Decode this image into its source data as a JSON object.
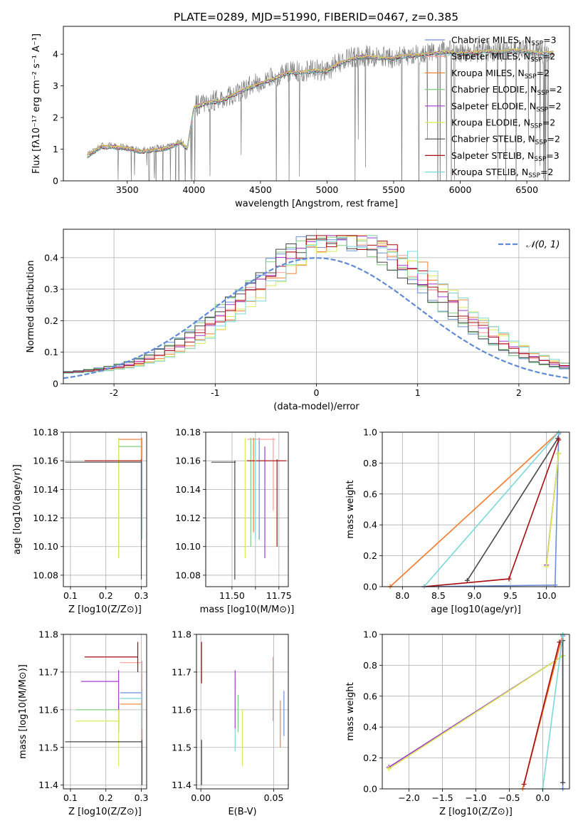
{
  "figure_title": "PLATE=0289, MJD=51990, FIBERID=0467, z=0.385",
  "colors": {
    "Chabrier MILES": "#6a8fdc",
    "Salpeter MILES": "#ff9a9a",
    "Kroupa MILES": "#f08232",
    "Chabrier ELODIE": "#7fcf7f",
    "Salpeter ELODIE": "#a43ad0",
    "Kroupa ELODIE": "#dcea55",
    "Chabrier STELIB": "#484848",
    "Salpeter STELIB": "#a80c10",
    "Kroupa STELIB": "#7ad8dc",
    "data": "#7f7f7f",
    "normal_curve": "#5f8ad8",
    "grid": "#b0b0b0"
  },
  "chart_data": [
    {
      "id": "spectrum",
      "type": "line",
      "title": "PLATE=0289, MJD=51990, FIBERID=0467, z=0.385",
      "xlabel": "wavelength [Angstrom, rest frame]",
      "ylabel": "Flux [f_λ 10^-17 erg cm^-2 s^-1 A^-1]",
      "xlim": [
        3020,
        6820
      ],
      "ylim": [
        0,
        4.88
      ],
      "xticks": [
        3500,
        4000,
        4500,
        5000,
        5500,
        6000,
        6500
      ],
      "yticks": [
        0,
        1,
        2,
        3,
        4
      ],
      "grid": false,
      "legend_position": "top-right",
      "legend": [
        {
          "model": "Chabrier MILES",
          "nssp": "3"
        },
        {
          "model": "Salpeter MILES",
          "nssp": "2"
        },
        {
          "model": "Kroupa MILES",
          "nssp": "2"
        },
        {
          "model": "Chabrier ELODIE",
          "nssp": "2"
        },
        {
          "model": "Salpeter ELODIE",
          "nssp": "2"
        },
        {
          "model": "Kroupa ELODIE",
          "nssp": "2"
        },
        {
          "model": "Chabrier STELIB",
          "nssp": "2"
        },
        {
          "model": "Salpeter STELIB",
          "nssp": "3"
        },
        {
          "model": "Kroupa STELIB",
          "nssp": "2"
        }
      ],
      "data_range": [
        3200,
        6700
      ],
      "continuum_x": [
        3200,
        3300,
        3400,
        3500,
        3600,
        3700,
        3800,
        3900,
        3950,
        4000,
        4100,
        4200,
        4300,
        4400,
        4500,
        4600,
        4700,
        4800,
        4900,
        5000,
        5100,
        5200,
        5300,
        5400,
        5500,
        5600,
        5700,
        5800,
        5900,
        6000,
        6100,
        6200,
        6300,
        6400,
        6500,
        6600,
        6700
      ],
      "continuum_y": [
        0.8,
        1.1,
        1.1,
        1.05,
        0.95,
        1.0,
        1.05,
        1.25,
        1.05,
        2.35,
        2.5,
        2.55,
        2.75,
        2.95,
        3.1,
        3.25,
        3.45,
        3.45,
        3.5,
        3.5,
        3.75,
        3.9,
        3.95,
        3.9,
        3.9,
        3.98,
        4.0,
        4.05,
        4.1,
        4.05,
        4.08,
        4.12,
        4.1,
        4.15,
        4.12,
        4.05,
        4.08
      ]
    },
    {
      "id": "residuals",
      "type": "step",
      "xlabel": "(data-model)/error",
      "ylabel": "Normed distribution",
      "xlim": [
        -2.5,
        2.5
      ],
      "ylim": [
        0,
        0.49
      ],
      "xticks": [
        -2,
        -1,
        0,
        1,
        2
      ],
      "yticks": [
        0.0,
        0.1,
        0.2,
        0.3,
        0.4
      ],
      "grid": true,
      "legend": [
        "𝒩(0, 1)"
      ],
      "legend_position": "top-right",
      "bin_width": 0.1,
      "curve": "normal(0,1)"
    },
    {
      "id": "age_vs_z",
      "type": "errorbar",
      "xlabel": "Z [log10(Z/Z⊙)]",
      "ylabel": "age [log10(age/yr)]",
      "xlim": [
        0.08,
        0.315
      ],
      "ylim": [
        10.072,
        10.18
      ],
      "xticks": [
        0.1,
        0.2,
        0.3
      ],
      "xtick_labels": [
        "0.1",
        "0.2",
        "0.3"
      ],
      "yticks": [
        10.08,
        10.1,
        10.12,
        10.14,
        10.16,
        10.18
      ],
      "ytick_labels": [
        "10.08",
        "10.10",
        "10.12",
        "10.14",
        "10.16",
        "10.18"
      ],
      "grid": true,
      "points": [
        {
          "model": "Chabrier MILES",
          "x": 0.302,
          "xlo": 0.302,
          "xhi": 0.302,
          "y": 10.175,
          "ylo": 10.11,
          "yhi": 10.176
        },
        {
          "model": "Salpeter MILES",
          "x": 0.3,
          "xlo": 0.235,
          "xhi": 0.302,
          "y": 10.175,
          "ylo": 10.125,
          "yhi": 10.176
        },
        {
          "model": "Kroupa MILES",
          "x": 0.3,
          "xlo": 0.235,
          "xhi": 0.302,
          "y": 10.175,
          "ylo": 10.105,
          "yhi": 10.176
        },
        {
          "model": "Chabrier ELODIE",
          "x": 0.236,
          "xlo": 0.236,
          "xhi": 0.3,
          "y": 10.17,
          "ylo": 10.092,
          "yhi": 10.176
        },
        {
          "model": "Salpeter ELODIE",
          "x": 0.302,
          "xlo": 0.302,
          "xhi": 0.302,
          "y": 10.17,
          "ylo": 10.14,
          "yhi": 10.176
        },
        {
          "model": "Kroupa ELODIE",
          "x": 0.236,
          "xlo": 0.236,
          "xhi": 0.3,
          "y": 10.16,
          "ylo": 10.092,
          "yhi": 10.176
        },
        {
          "model": "Chabrier STELIB",
          "x": 0.3,
          "xlo": 0.085,
          "xhi": 0.302,
          "y": 10.159,
          "ylo": 10.077,
          "yhi": 10.16
        },
        {
          "model": "Salpeter STELIB",
          "x": 0.3,
          "xlo": 0.14,
          "xhi": 0.302,
          "y": 10.16,
          "ylo": 10.16,
          "yhi": 10.161
        },
        {
          "model": "Kroupa STELIB",
          "x": 0.302,
          "xlo": 0.302,
          "xhi": 0.302,
          "y": 10.175,
          "ylo": 10.105,
          "yhi": 10.176
        }
      ]
    },
    {
      "id": "age_vs_mass",
      "type": "errorbar",
      "xlabel": "mass [log10(M/M⊙)]",
      "ylabel": "",
      "xlim": [
        11.36,
        11.8
      ],
      "ylim": [
        10.072,
        10.18
      ],
      "xticks": [
        11.5,
        11.6,
        11.7
      ],
      "xtick_labels": [
        "11.50",
        "11.75"
      ],
      "xtick_label_values": [
        11.5,
        11.75
      ],
      "xticks_all": [
        11.5,
        11.625,
        11.75
      ],
      "yticks": [
        10.08,
        10.1,
        10.12,
        10.14,
        10.16,
        10.18
      ],
      "ytick_labels": [
        "10.08",
        "10.10",
        "10.12",
        "10.14",
        "10.16",
        "10.18"
      ],
      "grid": true,
      "points": [
        {
          "model": "Chabrier MILES",
          "x": 11.645,
          "xlo": 11.645,
          "xhi": 11.645,
          "y": 10.175,
          "ylo": 10.105,
          "yhi": 10.176
        },
        {
          "model": "Salpeter MILES",
          "x": 11.72,
          "xlo": 11.58,
          "xhi": 11.73,
          "y": 10.175,
          "ylo": 10.125,
          "yhi": 10.176
        },
        {
          "model": "Kroupa MILES",
          "x": 11.615,
          "xlo": 11.615,
          "xhi": 11.615,
          "y": 10.175,
          "ylo": 10.11,
          "yhi": 10.176
        },
        {
          "model": "Chabrier ELODIE",
          "x": 11.6,
          "xlo": 11.6,
          "xhi": 11.6,
          "y": 10.17,
          "ylo": 10.1,
          "yhi": 10.176
        },
        {
          "model": "Salpeter ELODIE",
          "x": 11.675,
          "xlo": 11.675,
          "xhi": 11.675,
          "y": 10.17,
          "ylo": 10.092,
          "yhi": 10.17
        },
        {
          "model": "Kroupa ELODIE",
          "x": 11.57,
          "xlo": 11.57,
          "xhi": 11.57,
          "y": 10.17,
          "ylo": 10.092,
          "yhi": 10.176
        },
        {
          "model": "Chabrier STELIB",
          "x": 11.515,
          "xlo": 11.39,
          "xhi": 11.52,
          "y": 10.159,
          "ylo": 10.077,
          "yhi": 10.16
        },
        {
          "model": "Salpeter STELIB",
          "x": 11.74,
          "xlo": 11.58,
          "xhi": 11.79,
          "y": 10.16,
          "ylo": 10.1,
          "yhi": 10.161
        },
        {
          "model": "Kroupa STELIB",
          "x": 11.625,
          "xlo": 11.625,
          "xhi": 11.625,
          "y": 10.175,
          "ylo": 10.105,
          "yhi": 10.176
        }
      ]
    },
    {
      "id": "massweight_vs_age",
      "type": "line",
      "xlabel": "age [log10(age/yr)]",
      "ylabel": "mass weight",
      "xlim": [
        7.72,
        10.32
      ],
      "ylim": [
        0,
        1.0
      ],
      "xticks": [
        8.0,
        8.5,
        9.0,
        9.5,
        10.0
      ],
      "xtick_labels": [
        "8.0",
        "8.5",
        "9.0",
        "9.5",
        "10.0"
      ],
      "yticks": [
        0.0,
        0.2,
        0.4,
        0.6,
        0.8,
        1.0
      ],
      "ytick_labels": [
        "0.0",
        "0.2",
        "0.4",
        "0.6",
        "0.8",
        "1.0"
      ],
      "grid": true,
      "series": [
        {
          "model": "Chabrier MILES",
          "x": [
            8.3,
            10.12,
            10.17
          ],
          "y": [
            0.0,
            0.01,
            0.99
          ]
        },
        {
          "model": "Salpeter MILES",
          "x": [
            7.83,
            10.17
          ],
          "y": [
            0.0,
            1.0
          ]
        },
        {
          "model": "Kroupa MILES",
          "x": [
            7.83,
            10.17
          ],
          "y": [
            0.0,
            1.0
          ]
        },
        {
          "model": "Chabrier ELODIE",
          "x": [
            10.0,
            10.17
          ],
          "y": [
            0.14,
            0.86
          ]
        },
        {
          "model": "Salpeter ELODIE",
          "x": [
            10.0,
            10.17
          ],
          "y": [
            0.14,
            0.86
          ]
        },
        {
          "model": "Kroupa ELODIE",
          "x": [
            10.0,
            10.17
          ],
          "y": [
            0.13,
            0.86
          ]
        },
        {
          "model": "Chabrier STELIB",
          "x": [
            8.9,
            10.16
          ],
          "y": [
            0.04,
            0.96
          ]
        },
        {
          "model": "Salpeter STELIB",
          "x": [
            8.3,
            9.48,
            10.17
          ],
          "y": [
            0.0,
            0.05,
            0.95
          ]
        },
        {
          "model": "Kroupa STELIB",
          "x": [
            8.3,
            10.17
          ],
          "y": [
            0.0,
            1.0
          ]
        }
      ]
    },
    {
      "id": "mass_vs_z",
      "type": "errorbar",
      "xlabel": "Z [log10(Z/Z⊙)]",
      "ylabel": "mass [log10(M/M⊙)]",
      "xlim": [
        0.08,
        0.315
      ],
      "ylim": [
        11.39,
        11.8
      ],
      "xticks": [
        0.1,
        0.2,
        0.3
      ],
      "xtick_labels": [
        "0.1",
        "0.2",
        "0.3"
      ],
      "yticks": [
        11.4,
        11.5,
        11.6,
        11.7,
        11.8
      ],
      "ytick_labels": [
        "11.4",
        "11.5",
        "11.6",
        "11.7",
        "11.8"
      ],
      "grid": true,
      "points": [
        {
          "model": "Chabrier MILES",
          "x": 0.302,
          "xlo": 0.24,
          "xhi": 0.302,
          "y": 11.645,
          "ylo": 11.52,
          "yhi": 11.66
        },
        {
          "model": "Salpeter MILES",
          "x": 0.302,
          "xlo": 0.24,
          "xhi": 0.302,
          "y": 11.725,
          "ylo": 11.58,
          "yhi": 11.73
        },
        {
          "model": "Kroupa MILES",
          "x": 0.302,
          "xlo": 0.24,
          "xhi": 0.302,
          "y": 11.615,
          "ylo": 11.52,
          "yhi": 11.62
        },
        {
          "model": "Chabrier ELODIE",
          "x": 0.236,
          "xlo": 0.115,
          "xhi": 0.236,
          "y": 11.6,
          "ylo": 11.55,
          "yhi": 11.62
        },
        {
          "model": "Salpeter ELODIE",
          "x": 0.236,
          "xlo": 0.13,
          "xhi": 0.236,
          "y": 11.675,
          "ylo": 11.54,
          "yhi": 11.705
        },
        {
          "model": "Kroupa ELODIE",
          "x": 0.236,
          "xlo": 0.115,
          "xhi": 0.236,
          "y": 11.57,
          "ylo": 11.45,
          "yhi": 11.6
        },
        {
          "model": "Chabrier STELIB",
          "x": 0.302,
          "xlo": 0.085,
          "xhi": 0.302,
          "y": 11.515,
          "ylo": 11.4,
          "yhi": 11.52
        },
        {
          "model": "Salpeter STELIB",
          "x": 0.29,
          "xlo": 0.14,
          "xhi": 0.29,
          "y": 11.74,
          "ylo": 11.7,
          "yhi": 11.78
        },
        {
          "model": "Kroupa STELIB",
          "x": 0.302,
          "xlo": 0.24,
          "xhi": 0.302,
          "y": 11.63,
          "ylo": 11.55,
          "yhi": 11.65
        }
      ]
    },
    {
      "id": "mass_vs_ebv",
      "type": "errorbar",
      "xlabel": "E(B-V)",
      "ylabel": "",
      "xlim": [
        -0.003,
        0.06
      ],
      "ylim": [
        11.39,
        11.8
      ],
      "xticks": [
        0.0,
        0.05
      ],
      "xtick_labels": [
        "0.00",
        "0.05"
      ],
      "yticks": [
        11.4,
        11.5,
        11.6,
        11.7,
        11.8
      ],
      "ytick_labels": [
        "11.4",
        "11.5",
        "11.6",
        "11.7",
        "11.8"
      ],
      "grid": true,
      "points": [
        {
          "model": "Chabrier MILES",
          "x": 0.057,
          "y": 11.6,
          "ylo": 11.53,
          "yhi": 11.65
        },
        {
          "model": "Salpeter MILES",
          "x": 0.0495,
          "y": 11.66,
          "ylo": 11.57,
          "yhi": 11.74
        },
        {
          "model": "Kroupa MILES",
          "x": 0.0545,
          "y": 11.56,
          "ylo": 11.5,
          "yhi": 11.625
        },
        {
          "model": "Chabrier ELODIE",
          "x": 0.0255,
          "y": 11.58,
          "ylo": 11.54,
          "yhi": 11.64
        },
        {
          "model": "Salpeter ELODIE",
          "x": 0.0235,
          "y": 11.62,
          "ylo": 11.55,
          "yhi": 11.705
        },
        {
          "model": "Kroupa ELODIE",
          "x": 0.0285,
          "y": 11.52,
          "ylo": 11.45,
          "yhi": 11.6
        },
        {
          "model": "Chabrier STELIB",
          "x": 0.0005,
          "y": 11.45,
          "ylo": 11.4,
          "yhi": 11.52
        },
        {
          "model": "Salpeter STELIB",
          "x": 0.0005,
          "y": 11.73,
          "ylo": 11.67,
          "yhi": 11.78
        },
        {
          "model": "Kroupa STELIB",
          "x": 0.0235,
          "y": 11.52,
          "ylo": 11.49,
          "yhi": 11.55
        }
      ]
    },
    {
      "id": "massweight_vs_z",
      "type": "line",
      "xlabel": "Z [log10(Z/Z⊙)]",
      "ylabel": "mass weight",
      "xlim": [
        -2.4,
        0.4
      ],
      "ylim": [
        0,
        1.0
      ],
      "xticks": [
        -2.0,
        -1.5,
        -1.0,
        -0.5,
        0.0
      ],
      "xtick_labels": [
        "−2.0",
        "−1.5",
        "−1.0",
        "−0.5",
        "0.0"
      ],
      "yticks": [
        0.0,
        0.2,
        0.4,
        0.6,
        0.8,
        1.0
      ],
      "ytick_labels": [
        "0.0",
        "0.2",
        "0.4",
        "0.6",
        "0.8",
        "1.0"
      ],
      "grid": true,
      "series": [
        {
          "model": "Chabrier MILES",
          "x": [
            0.3,
            0.3
          ],
          "y": [
            0.0,
            0.99
          ]
        },
        {
          "model": "Salpeter MILES",
          "x": [
            -0.3,
            0.3
          ],
          "y": [
            0.0,
            1.0
          ]
        },
        {
          "model": "Kroupa MILES",
          "x": [
            -0.3,
            0.3
          ],
          "y": [
            0.0,
            1.0
          ]
        },
        {
          "model": "Chabrier ELODIE",
          "x": [
            -2.3,
            0.3
          ],
          "y": [
            0.14,
            0.86
          ]
        },
        {
          "model": "Salpeter ELODIE",
          "x": [
            -2.3,
            0.3
          ],
          "y": [
            0.14,
            0.86
          ]
        },
        {
          "model": "Kroupa ELODIE",
          "x": [
            -2.3,
            0.3
          ],
          "y": [
            0.13,
            0.86
          ]
        },
        {
          "model": "Chabrier STELIB",
          "x": [
            0.3,
            0.3
          ],
          "y": [
            0.04,
            0.96
          ]
        },
        {
          "model": "Salpeter STELIB",
          "x": [
            -0.28,
            0.25
          ],
          "y": [
            0.03,
            0.95
          ]
        },
        {
          "model": "Kroupa STELIB",
          "x": [
            0.0,
            0.3
          ],
          "y": [
            0.0,
            1.0
          ]
        }
      ]
    }
  ]
}
